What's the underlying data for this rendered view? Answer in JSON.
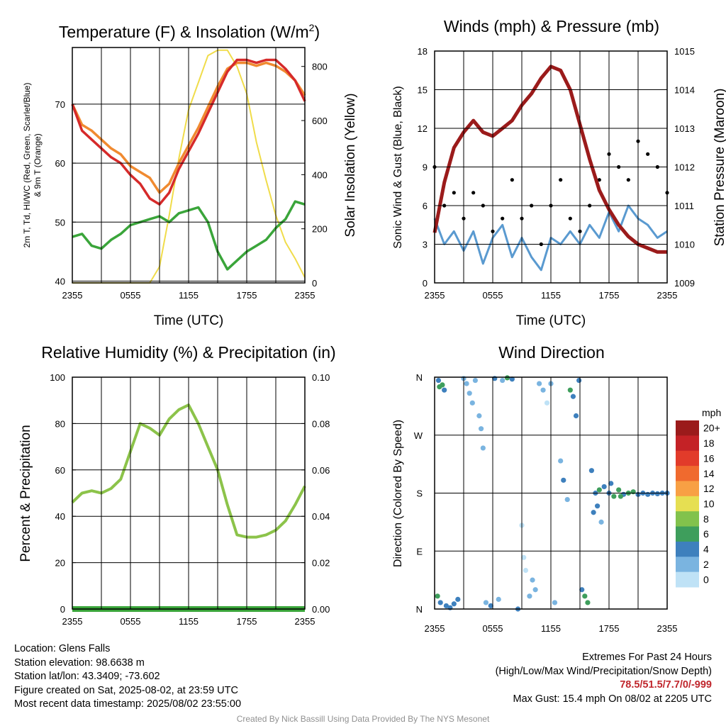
{
  "chart_data": [
    {
      "type": "line",
      "title": "Temperature (F) & Insolation (W/m²)",
      "title_text": "Temperature (F) & Insolation (W/m",
      "title_sup": "2",
      "title_close": ")",
      "xlabel": "Time (UTC)",
      "ylabel_left_line1": "2m T, Td, HI/WC (Red, Green, Scarlet/Blue)",
      "ylabel_left_line2": "& 9m T (Orange)",
      "ylabel_right": "Solar Insolation (Yellow)",
      "x_ticks": [
        "2355",
        "0555",
        "1155",
        "1755",
        "2355"
      ],
      "y_ticks_left": [
        "40",
        "50",
        "60",
        "70"
      ],
      "y_ticks_right": [
        "0",
        "200",
        "400",
        "600",
        "800"
      ],
      "ylim_left": [
        39.7,
        79.6
      ],
      "ylim_right": [
        0,
        870
      ],
      "x": [
        0,
        1,
        2,
        3,
        4,
        5,
        6,
        7,
        8,
        9,
        10,
        11,
        12,
        13,
        14,
        15,
        16,
        17,
        18,
        19,
        20,
        21,
        22,
        23,
        24
      ],
      "series": [
        {
          "key": "insolation",
          "axis": "right",
          "color": "#f0dc4a",
          "width": 2,
          "values": [
            0,
            0,
            0,
            0,
            0,
            0,
            0,
            0,
            0,
            60,
            250,
            460,
            640,
            740,
            840,
            860,
            860,
            800,
            700,
            520,
            380,
            250,
            150,
            90,
            20
          ]
        },
        {
          "key": "t9m",
          "axis": "left",
          "color": "#f08a30",
          "width": 3.5,
          "values": [
            70,
            66.5,
            65.5,
            64,
            62.5,
            61.5,
            59.5,
            58.5,
            57.5,
            55,
            56.5,
            60,
            63,
            66,
            69.5,
            73,
            76,
            77,
            77,
            76.5,
            77,
            76.5,
            75.5,
            74,
            71.5
          ]
        },
        {
          "key": "t2m",
          "axis": "left",
          "color": "#d62a2a",
          "width": 3.5,
          "values": [
            70,
            65.5,
            64,
            62.5,
            61,
            60,
            58,
            56.5,
            54,
            53,
            55,
            59,
            62,
            65,
            68.5,
            72,
            75.5,
            77.5,
            77.5,
            77,
            77.5,
            77.5,
            76,
            74,
            70.5
          ]
        },
        {
          "key": "td",
          "axis": "left",
          "color": "#3aa53a",
          "width": 3.5,
          "values": [
            47.5,
            48,
            46,
            45.5,
            47,
            48,
            49.5,
            50,
            50.5,
            51,
            50,
            51.5,
            52,
            52.5,
            50,
            45,
            42,
            43.5,
            45,
            46,
            47,
            49,
            50.5,
            53.5,
            53
          ]
        }
      ]
    },
    {
      "type": "scatter",
      "title": "Winds (mph) & Pressure (mb)",
      "xlabel": "Time (UTC)",
      "ylabel_left": "Sonic Wind & Gust (Blue, Black)",
      "ylabel_right": "Station Pressure (Maroon)",
      "x_ticks": [
        "2355",
        "0555",
        "1155",
        "1755",
        "2355"
      ],
      "y_ticks_left": [
        "0",
        "3",
        "6",
        "9",
        "12",
        "15",
        "18"
      ],
      "y_ticks_right": [
        "1009",
        "1010",
        "1011",
        "1012",
        "1013",
        "1014",
        "1015"
      ],
      "ylim_left": [
        0,
        18
      ],
      "ylim_right": [
        1009,
        1015
      ],
      "x": [
        0,
        1,
        2,
        3,
        4,
        5,
        6,
        7,
        8,
        9,
        10,
        11,
        12,
        13,
        14,
        15,
        16,
        17,
        18,
        19,
        20,
        21,
        22,
        23,
        24
      ],
      "pressure": {
        "color": "#9b1b1b",
        "values": [
          1010.3,
          1011.6,
          1012.5,
          1012.9,
          1013.2,
          1012.9,
          1012.8,
          1013.0,
          1013.2,
          1013.6,
          1013.9,
          1014.3,
          1014.6,
          1014.5,
          1014.0,
          1013.1,
          1012.2,
          1011.4,
          1010.9,
          1010.5,
          1010.2,
          1010.0,
          1009.9,
          1009.8,
          1009.8
        ]
      },
      "wind": {
        "color": "#5a9ad0",
        "values": [
          5,
          3,
          4,
          2.5,
          4,
          1.5,
          3.5,
          4.5,
          2,
          3.5,
          2,
          1,
          3.5,
          3,
          4,
          3,
          4.5,
          3.5,
          5.5,
          4,
          6,
          5,
          4.5,
          3.5,
          4
        ]
      },
      "gust": {
        "color": "#000000",
        "values": [
          9,
          6,
          7,
          5,
          7,
          6,
          4,
          5,
          8,
          5,
          6,
          3,
          6,
          8,
          5,
          4,
          6,
          8,
          10,
          9,
          8,
          11,
          10,
          9,
          7
        ]
      }
    },
    {
      "type": "line",
      "title": "Relative Humidity (%) & Precipitation (in)",
      "xlabel": "",
      "ylabel_left": "Percent & Precipitation",
      "x_ticks": [
        "2355",
        "0555",
        "1155",
        "1755",
        "2355"
      ],
      "y_ticks_left": [
        "0",
        "20",
        "40",
        "60",
        "80",
        "100"
      ],
      "y_ticks_right": [
        "0.00",
        "0.02",
        "0.04",
        "0.06",
        "0.08",
        "0.10"
      ],
      "ylim_left": [
        0,
        100
      ],
      "ylim_right": [
        0,
        0.1
      ],
      "x": [
        0,
        1,
        2,
        3,
        4,
        5,
        6,
        7,
        8,
        9,
        10,
        11,
        12,
        13,
        14,
        15,
        16,
        17,
        18,
        19,
        20,
        21,
        22,
        23,
        24
      ],
      "series": [
        {
          "key": "rh",
          "color": "#8cc34a",
          "values": [
            46,
            50,
            51,
            50,
            52,
            56,
            68,
            80,
            78,
            75,
            82,
            86,
            88,
            80,
            70,
            60,
            45,
            32,
            31,
            31,
            32,
            34,
            38,
            45,
            53
          ]
        },
        {
          "key": "precip",
          "color": "#3aa53a",
          "values": [
            0,
            0,
            0,
            0,
            0,
            0,
            0,
            0,
            0,
            0,
            0,
            0,
            0,
            0,
            0,
            0,
            0,
            0,
            0,
            0,
            0,
            0,
            0,
            0,
            0
          ]
        }
      ]
    },
    {
      "type": "scatter",
      "title": "Wind Direction",
      "ylabel": "Direction (Colored By Speed)",
      "x_ticks": [
        "2355",
        "0555",
        "1155",
        "1755",
        "2355"
      ],
      "y_ticks": [
        "N",
        "E",
        "S",
        "W",
        "N"
      ],
      "ylim": [
        0,
        360
      ],
      "legend_title": "mph",
      "legend_labels": [
        "20+",
        "18",
        "16",
        "14",
        "12",
        "10",
        "8",
        "6",
        "4",
        "2",
        "0"
      ],
      "legend_colors": [
        "#9b1b1b",
        "#c42226",
        "#e23b2a",
        "#f06a2e",
        "#f8a044",
        "#e6df52",
        "#82c24c",
        "#3e9e5c",
        "#3e80bd",
        "#7ab4e0",
        "#bfe2f6"
      ],
      "points": [
        [
          0.4,
          355,
          4
        ],
        [
          0.5,
          345,
          6
        ],
        [
          0.8,
          348,
          5
        ],
        [
          1.0,
          340,
          4
        ],
        [
          0.3,
          20,
          6
        ],
        [
          0.6,
          10,
          4
        ],
        [
          1.2,
          5,
          4
        ],
        [
          1.6,
          2,
          4
        ],
        [
          2.0,
          8,
          4
        ],
        [
          2.4,
          15,
          4
        ],
        [
          3.0,
          358,
          2
        ],
        [
          3.3,
          350,
          2
        ],
        [
          3.6,
          335,
          2
        ],
        [
          3.9,
          320,
          2
        ],
        [
          4.2,
          355,
          2
        ],
        [
          4.6,
          300,
          2
        ],
        [
          4.8,
          280,
          2
        ],
        [
          5.0,
          250,
          2
        ],
        [
          5.3,
          10,
          2
        ],
        [
          5.8,
          5,
          4
        ],
        [
          6.2,
          358,
          4
        ],
        [
          6.6,
          15,
          2
        ],
        [
          7.0,
          355,
          2
        ],
        [
          7.5,
          359,
          6
        ],
        [
          8.0,
          357,
          4
        ],
        [
          8.6,
          0,
          4
        ],
        [
          9.0,
          130,
          0
        ],
        [
          9.2,
          80,
          0
        ],
        [
          9.4,
          60,
          0
        ],
        [
          9.8,
          20,
          2
        ],
        [
          10.1,
          45,
          2
        ],
        [
          10.4,
          30,
          2
        ],
        [
          10.8,
          350,
          2
        ],
        [
          11.2,
          340,
          2
        ],
        [
          11.6,
          320,
          0
        ],
        [
          12.0,
          350,
          2
        ],
        [
          12.4,
          10,
          2
        ],
        [
          13.0,
          230,
          2
        ],
        [
          13.3,
          200,
          4
        ],
        [
          13.7,
          170,
          2
        ],
        [
          14.0,
          340,
          6
        ],
        [
          14.3,
          330,
          4
        ],
        [
          14.6,
          300,
          4
        ],
        [
          14.9,
          355,
          4
        ],
        [
          15.2,
          30,
          4
        ],
        [
          15.5,
          20,
          6
        ],
        [
          15.8,
          10,
          6
        ],
        [
          16.2,
          215,
          4
        ],
        [
          16.6,
          180,
          4
        ],
        [
          17.0,
          185,
          6
        ],
        [
          17.5,
          190,
          4
        ],
        [
          18.0,
          180,
          4
        ],
        [
          18.5,
          175,
          6
        ],
        [
          19.0,
          185,
          6
        ],
        [
          19.5,
          178,
          4
        ],
        [
          20.0,
          180,
          6
        ],
        [
          20.5,
          182,
          6
        ],
        [
          21.0,
          178,
          4
        ],
        [
          21.5,
          180,
          4
        ],
        [
          22.0,
          178,
          4
        ],
        [
          22.5,
          180,
          4
        ],
        [
          23.0,
          179,
          4
        ],
        [
          23.5,
          180,
          4
        ],
        [
          24.0,
          180,
          4
        ],
        [
          16.8,
          160,
          4
        ],
        [
          17.2,
          135,
          2
        ],
        [
          16.4,
          150,
          4
        ],
        [
          18.2,
          195,
          4
        ],
        [
          19.2,
          175,
          6
        ]
      ]
    }
  ],
  "info": {
    "location": "Location: Glens Falls",
    "elevation": "Station elevation: 98.6638 m",
    "latlon": "Station lat/lon: 43.3409; -73.602",
    "created": "Figure created on Sat, 2025-08-02, at 23:59 UTC",
    "recent": "Most recent data timestamp: 2025/08/02 23:55:00",
    "extremes_title": "Extremes For Past 24 Hours",
    "extremes_sub": "(High/Low/Max Wind/Precipitation/Snow Depth)",
    "extremes_values": "78.5/51.5/7.7/0/-999",
    "max_gust": "Max Gust: 15.4 mph On 08/02 at 2205 UTC",
    "credit": "Created By Nick Bassill Using Data Provided By The NYS Mesonet",
    "extremes_color": "#c0272d"
  }
}
